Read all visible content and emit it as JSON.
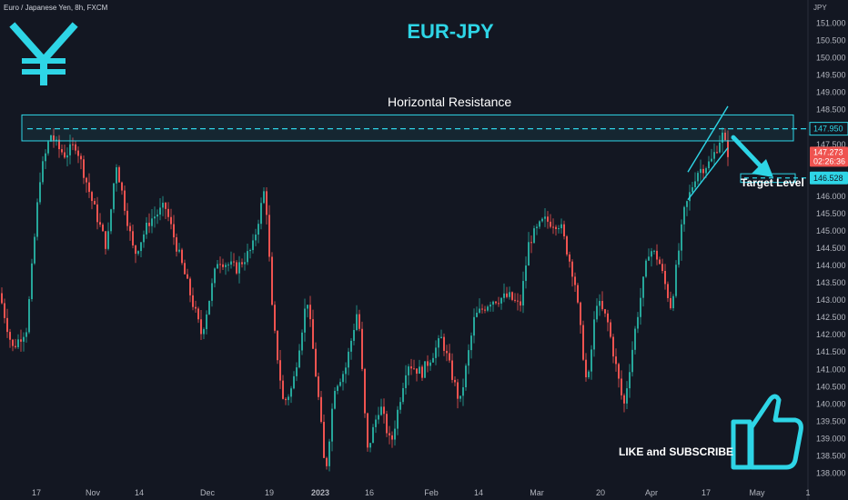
{
  "header": {
    "symbol_line": "Euro / Japanese Yen, 8h, FXCM",
    "unit": "JPY"
  },
  "annotations": {
    "title": "EUR-JPY",
    "resistance_label": "Horizontal Resistance",
    "target_label": "Target Level",
    "cta": "LIKE and SUBSCRIBE"
  },
  "colors": {
    "up": "#26a69a",
    "down": "#ef5350",
    "accent": "#2ed5e6",
    "background": "#131722"
  },
  "icons": [
    "yen-icon",
    "thumbs-up-icon"
  ],
  "price_tags": {
    "resistance": "147.950",
    "last": "147.273",
    "countdown": "02:26:36",
    "target": "146.528"
  },
  "chart_data": {
    "type": "candlestick",
    "yunit": "JPY",
    "ylim": [
      137.75,
      151.25
    ],
    "ytick_labels": [
      "138.000",
      "138.500",
      "139.000",
      "139.500",
      "140.000",
      "140.500",
      "141.000",
      "141.500",
      "142.000",
      "142.500",
      "143.000",
      "143.500",
      "144.000",
      "144.500",
      "145.000",
      "145.500",
      "146.000",
      "146.500",
      "147.000",
      "147.500",
      "148.000",
      "148.500",
      "149.000",
      "149.500",
      "150.000",
      "150.500",
      "151.000"
    ],
    "xtick_labels": [
      "17",
      "Nov",
      "14",
      "Dec",
      "19",
      "2023",
      "16",
      "Feb",
      "14",
      "Mar",
      "20",
      "Apr",
      "17",
      "May",
      "1"
    ],
    "price_path": [
      [
        0,
        143.2
      ],
      [
        14,
        141.6
      ],
      [
        30,
        142.2
      ],
      [
        44,
        146.5
      ],
      [
        56,
        147.8
      ],
      [
        64,
        147.4
      ],
      [
        72,
        147.2
      ],
      [
        84,
        147.5
      ],
      [
        100,
        146.0
      ],
      [
        118,
        144.5
      ],
      [
        128,
        147.0
      ],
      [
        148,
        144.3
      ],
      [
        165,
        145.3
      ],
      [
        182,
        145.7
      ],
      [
        205,
        143.6
      ],
      [
        222,
        142.0
      ],
      [
        240,
        144.2
      ],
      [
        260,
        143.9
      ],
      [
        278,
        144.5
      ],
      [
        292,
        146.3
      ],
      [
        300,
        142.5
      ],
      [
        312,
        140.0
      ],
      [
        322,
        140.5
      ],
      [
        338,
        143.1
      ],
      [
        352,
        139.8
      ],
      [
        358,
        137.9
      ],
      [
        368,
        140.5
      ],
      [
        380,
        141.0
      ],
      [
        394,
        142.8
      ],
      [
        404,
        138.6
      ],
      [
        418,
        140.0
      ],
      [
        430,
        138.8
      ],
      [
        448,
        141.2
      ],
      [
        464,
        140.9
      ],
      [
        486,
        141.9
      ],
      [
        506,
        140.0
      ],
      [
        522,
        142.5
      ],
      [
        540,
        143.0
      ],
      [
        560,
        143.1
      ],
      [
        572,
        142.8
      ],
      [
        582,
        144.7
      ],
      [
        598,
        145.3
      ],
      [
        616,
        145.2
      ],
      [
        632,
        143.6
      ],
      [
        646,
        140.4
      ],
      [
        656,
        143.0
      ],
      [
        668,
        142.4
      ],
      [
        686,
        139.9
      ],
      [
        700,
        142.4
      ],
      [
        714,
        144.5
      ],
      [
        724,
        144.2
      ],
      [
        738,
        142.8
      ],
      [
        752,
        145.5
      ],
      [
        766,
        146.7
      ],
      [
        782,
        147.0
      ],
      [
        794,
        147.8
      ],
      [
        800,
        147.27
      ]
    ],
    "horizontal_levels": [
      {
        "name": "Horizontal Resistance",
        "value": 147.95,
        "zone": [
          147.6,
          148.35
        ]
      },
      {
        "name": "Target Level",
        "value": 146.528,
        "zone": [
          146.4,
          146.65
        ]
      }
    ],
    "channel": {
      "lower": [
        [
          756,
          145.9
        ],
        [
          800,
          147.4
        ]
      ],
      "upper": [
        [
          756,
          146.7
        ],
        [
          800,
          148.6
        ]
      ]
    },
    "projection_arrow": {
      "from": [
        806,
        147.7
      ],
      "to": [
        850,
        146.55
      ]
    },
    "last_price": 147.273
  }
}
